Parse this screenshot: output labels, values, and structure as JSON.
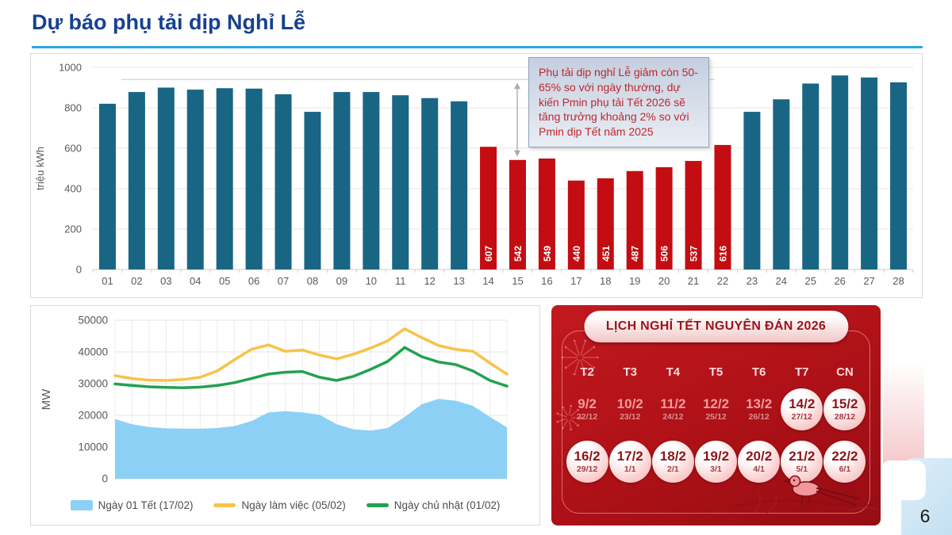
{
  "slide": {
    "title": "Dự báo phụ tải dịp Nghỉ Lễ",
    "page_number": "6",
    "title_color": "#16418F",
    "underline_color": "#2BA7DF"
  },
  "annotation": {
    "text": "Phụ tải dịp nghỉ Lễ giảm còn 50-65% so với ngày thường, dự kiến Pmin phụ tải Tết 2026 sẽ tăng trưởng khoảng 2% so với Pmin dịp Tết năm 2025",
    "text_color": "#C0262C"
  },
  "chart_data": [
    {
      "id": "daily-energy-bar-chart",
      "type": "bar",
      "ylabel": "triệu kWh",
      "ylim": [
        0,
        1000
      ],
      "yticks": [
        0,
        200,
        400,
        600,
        800,
        1000
      ],
      "categories": [
        "01",
        "02",
        "03",
        "04",
        "05",
        "06",
        "07",
        "08",
        "09",
        "10",
        "11",
        "12",
        "13",
        "14",
        "15",
        "16",
        "17",
        "18",
        "19",
        "20",
        "21",
        "22",
        "23",
        "24",
        "25",
        "26",
        "27",
        "28"
      ],
      "values": [
        820,
        878,
        900,
        890,
        897,
        895,
        867,
        780,
        878,
        878,
        862,
        848,
        832,
        607,
        542,
        549,
        440,
        451,
        487,
        506,
        537,
        616,
        780,
        842,
        920,
        960,
        950,
        926
      ],
      "highlighted": [
        "14",
        "15",
        "16",
        "17",
        "18",
        "19",
        "20",
        "21",
        "22"
      ],
      "bar_color": "#196684",
      "highlight_color": "#C30D12",
      "value_label_color": "#FFFFFF",
      "reference_line_value": 940,
      "grid": true,
      "legend_position": "none"
    },
    {
      "id": "daily-load-profile-chart",
      "type": "line",
      "ylabel": "MW",
      "ylim": [
        0,
        50000
      ],
      "yticks": [
        0,
        10000,
        20000,
        30000,
        40000,
        50000
      ],
      "x": [
        0,
        1,
        2,
        3,
        4,
        5,
        6,
        7,
        8,
        9,
        10,
        11,
        12,
        13,
        14,
        15,
        16,
        17,
        18,
        19,
        20,
        21,
        22,
        23
      ],
      "series": [
        {
          "name": "Ngày 01 Tết (17/02)",
          "type": "area",
          "color": "#8DD0F5",
          "values": [
            18800,
            17200,
            16300,
            15900,
            15800,
            15800,
            16000,
            16600,
            18200,
            20900,
            21300,
            20900,
            20200,
            17200,
            15600,
            15200,
            16000,
            19500,
            23500,
            25200,
            24600,
            23000,
            19500,
            16200
          ]
        },
        {
          "name": "Ngày làm việc (05/02)",
          "type": "line",
          "color": "#F7C348",
          "values": [
            32500,
            31600,
            31100,
            31000,
            31300,
            32000,
            34000,
            37500,
            40800,
            42200,
            40200,
            40600,
            39000,
            37800,
            39300,
            41200,
            43500,
            47300,
            44500,
            42000,
            40800,
            40200,
            36500,
            33000
          ]
        },
        {
          "name": "Ngày chủ nhật (01/02)",
          "type": "line",
          "color": "#22A24F",
          "values": [
            29900,
            29400,
            29000,
            28800,
            28700,
            28900,
            29400,
            30300,
            31600,
            33000,
            33600,
            33800,
            32000,
            31000,
            32300,
            34500,
            37000,
            41400,
            38500,
            36800,
            36000,
            34000,
            31000,
            29200
          ]
        }
      ],
      "grid": true,
      "legend_position": "bottom"
    }
  ],
  "calendar": {
    "title": "LỊCH NGHỈ TẾT NGUYÊN ĐÁN 2026",
    "day_headers": [
      "T2",
      "T3",
      "T4",
      "T5",
      "T6",
      "T7",
      "CN"
    ],
    "rows": [
      [
        {
          "solar": "9/2",
          "lunar": "22/12",
          "circled": false
        },
        {
          "solar": "10/2",
          "lunar": "23/12",
          "circled": false
        },
        {
          "solar": "11/2",
          "lunar": "24/12",
          "circled": false
        },
        {
          "solar": "12/2",
          "lunar": "25/12",
          "circled": false
        },
        {
          "solar": "13/2",
          "lunar": "26/12",
          "circled": false
        },
        {
          "solar": "14/2",
          "lunar": "27/12",
          "circled": true
        },
        {
          "solar": "15/2",
          "lunar": "28/12",
          "circled": true
        }
      ],
      [
        {
          "solar": "16/2",
          "lunar": "29/12",
          "circled": true
        },
        {
          "solar": "17/2",
          "lunar": "1/1",
          "circled": true
        },
        {
          "solar": "18/2",
          "lunar": "2/1",
          "circled": true
        },
        {
          "solar": "19/2",
          "lunar": "3/1",
          "circled": true
        },
        {
          "solar": "20/2",
          "lunar": "4/1",
          "circled": true
        },
        {
          "solar": "21/2",
          "lunar": "5/1",
          "circled": true
        },
        {
          "solar": "22/2",
          "lunar": "6/1",
          "circled": true
        }
      ]
    ],
    "panel_color": "#AD1117",
    "circle_text_color": "#8E1418"
  }
}
